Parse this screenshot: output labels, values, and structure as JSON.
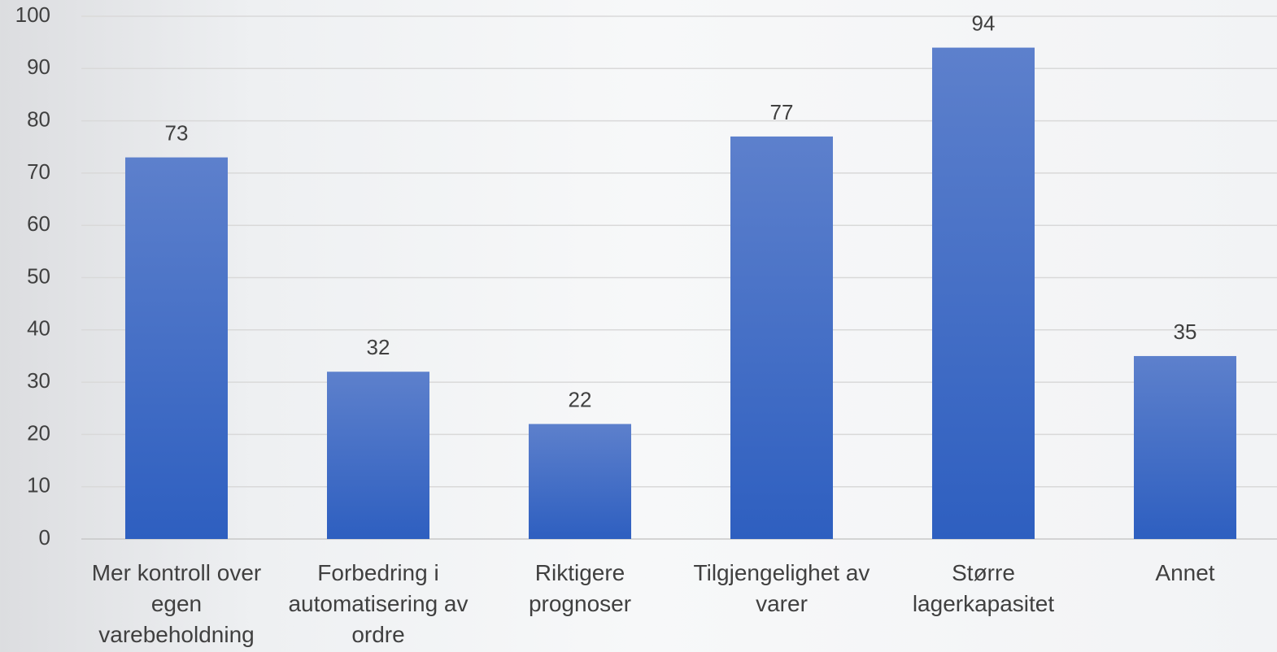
{
  "chart_data": {
    "type": "bar",
    "categories": [
      "Mer kontroll over egen varebeholdning",
      "Forbedring i automatisering av ordre",
      "Riktigere prognoser",
      "Tilgjengelighet av varer",
      "Større lagerkapasitet",
      "Annet"
    ],
    "values": [
      73,
      32,
      22,
      77,
      94,
      35
    ],
    "color_top": "#5d80cc",
    "color": "#2e5fc0",
    "ylim": [
      0,
      100
    ],
    "yticks": [
      0,
      10,
      20,
      30,
      40,
      50,
      60,
      70,
      80,
      90,
      100
    ],
    "grid": true
  }
}
